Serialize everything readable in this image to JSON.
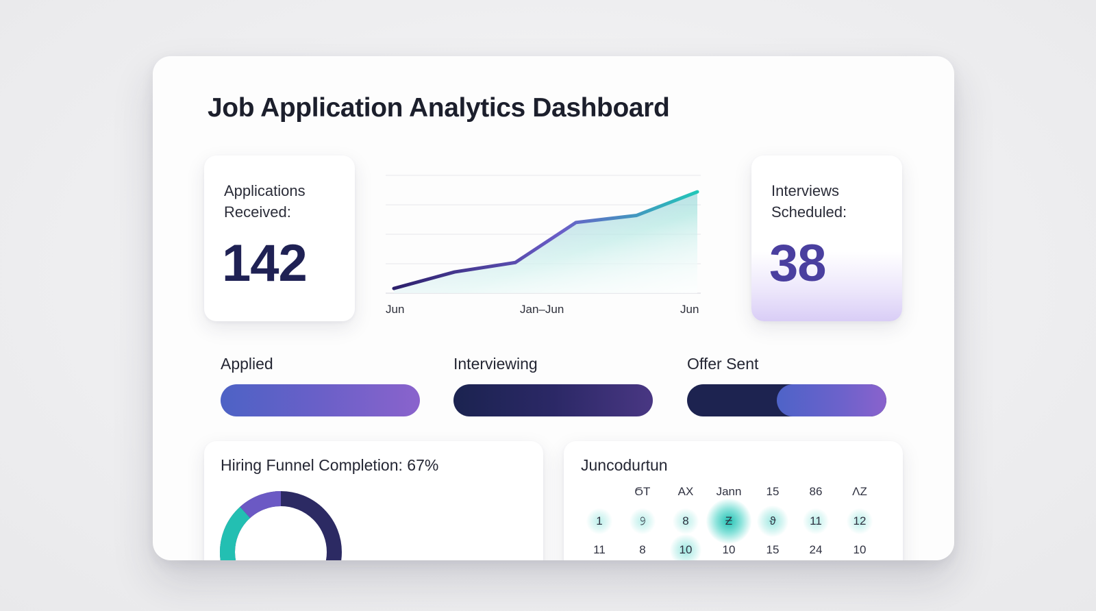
{
  "dashboard": {
    "title": "Job Application Analytics Dashboard",
    "kpis": {
      "applications": {
        "label_line1": "Applications",
        "label_line2": "Received:",
        "value": "142"
      },
      "interviews": {
        "label_line1": "Interviews",
        "label_line2": "Scheduled:",
        "value": "38"
      }
    },
    "trend": {
      "x_labels": [
        "Jun",
        "Jan–Jun",
        "Jun"
      ],
      "colors": {
        "line_start": "#2c1f6b",
        "line_mid": "#6a5ec8",
        "line_end": "#21c7b8"
      }
    },
    "stages": [
      {
        "label": "Applied",
        "fill_fraction": 1.0
      },
      {
        "label": "Interviewing",
        "fill_fraction": 1.0
      },
      {
        "label": "Offer Sent",
        "fill_fraction": 0.55
      }
    ],
    "funnel": {
      "title": "Hiring Funnel Completion: 67%",
      "percent": 67
    },
    "calendar": {
      "title": "Juncoduɾtun",
      "headers": [
        "",
        "ϬT",
        "AX",
        "Jann",
        "15",
        "86",
        "ɅZ"
      ],
      "rows": [
        [
          {
            "t": "1",
            "glow": 1
          },
          {
            "t": "𝟿",
            "glow": 1
          },
          {
            "t": "8",
            "glow": 1
          },
          {
            "t": "Ƶ",
            "glow": 3
          },
          {
            "t": "ϑ",
            "glow": 2
          },
          {
            "t": "11",
            "glow": 1
          },
          {
            "t": "12",
            "glow": 1
          }
        ],
        [
          {
            "t": "11",
            "glow": 0
          },
          {
            "t": "8",
            "glow": 0
          },
          {
            "t": "10",
            "glow": 2
          },
          {
            "t": "10",
            "glow": 0
          },
          {
            "t": "15",
            "glow": 0
          },
          {
            "t": "24",
            "glow": 0
          },
          {
            "t": "10",
            "glow": 0
          }
        ]
      ]
    }
  },
  "chart_data": {
    "type": "area",
    "title": "",
    "xlabel": "",
    "ylabel": "",
    "x": [
      0,
      1,
      2,
      3,
      4,
      5
    ],
    "x_tick_labels": [
      "Jun",
      "Jan–Jun",
      "Jun"
    ],
    "series": [
      {
        "values": [
          2,
          9,
          13,
          30,
          33,
          43
        ]
      }
    ],
    "ylim": [
      0,
      50
    ],
    "grid": true
  }
}
